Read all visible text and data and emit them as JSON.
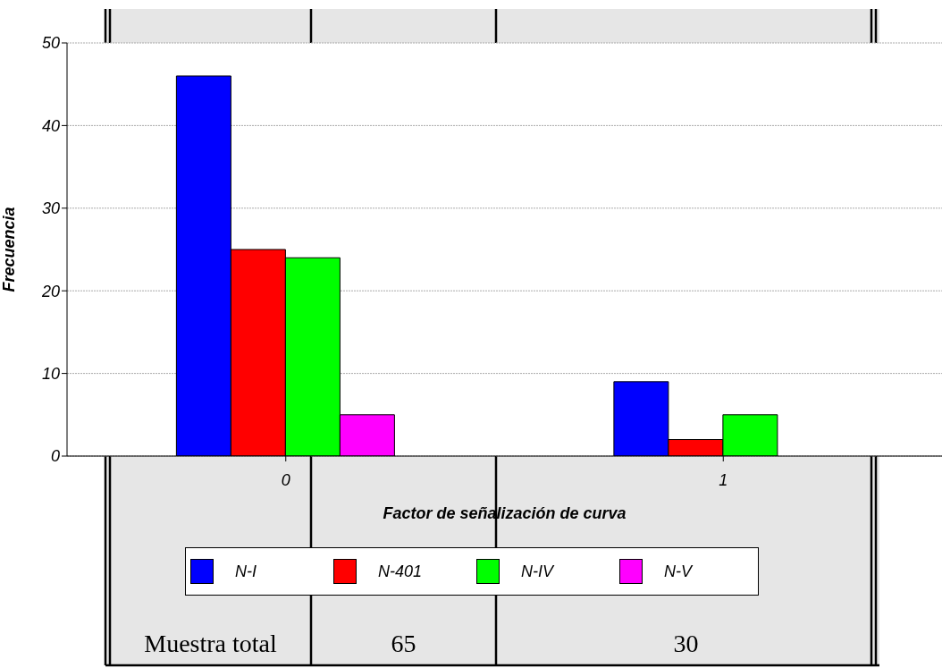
{
  "chart_data": {
    "type": "bar",
    "xlabel": "Factor de señalización de curva",
    "ylabel": "Frecuencia",
    "categories": [
      "0",
      "1"
    ],
    "series": [
      {
        "name": "N-I",
        "color": "#0000ff",
        "values": [
          46,
          9
        ]
      },
      {
        "name": "N-401",
        "color": "#ff0000",
        "values": [
          25,
          2
        ]
      },
      {
        "name": "N-IV",
        "color": "#00ff00",
        "values": [
          24,
          5
        ]
      },
      {
        "name": "N-V",
        "color": "#ff00ff",
        "values": [
          5,
          0
        ]
      }
    ],
    "ylim": [
      0,
      50
    ],
    "yticks": [
      0,
      10,
      20,
      30,
      40,
      50
    ],
    "grid": "y",
    "legend": "bottom",
    "annotations": [
      "Muestra total",
      "65",
      "30"
    ]
  }
}
